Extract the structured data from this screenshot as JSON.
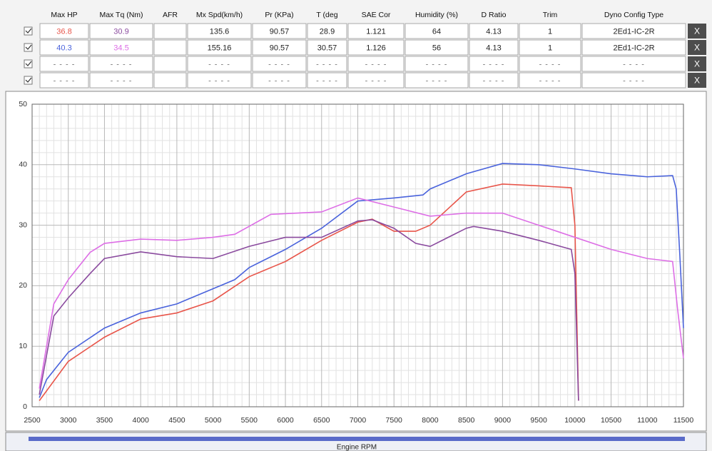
{
  "table": {
    "headers": [
      "Max HP",
      "Max Tq (Nm)",
      "AFR",
      "Mx Spd(km/h)",
      "Pr (KPa)",
      "T (deg",
      "SAE Cor",
      "Humidity (%)",
      "D Ratio",
      "Trim",
      "Dyno Config Type"
    ],
    "remove_button": "X",
    "rows": [
      [
        "36.8",
        "30.9",
        null,
        "135.6",
        "90.57",
        "28.9",
        "1.121",
        "64",
        "4.13",
        "1",
        "2Ed1-IC-2R"
      ],
      [
        "40.3",
        "34.5",
        null,
        "155.16",
        "90.57",
        "30.57",
        "1.126",
        "56",
        "4.13",
        "1",
        "2Ed1-IC-2R"
      ],
      [
        "- - - -",
        "- - - -",
        null,
        "- - - -",
        "- - - -",
        "- - - -",
        "- - - -",
        "- - - -",
        "- - - -",
        "- - - -",
        "- - - -"
      ],
      [
        "- - - -",
        "- - - -",
        null,
        "- - - -",
        "- - - -",
        "- - - -",
        "- - - -",
        "- - - -",
        "- - - -",
        "- - - -",
        "- - - -"
      ]
    ]
  },
  "chart_data": {
    "type": "line",
    "xlabel": "Engine RPM",
    "xlim": [
      2500,
      11500
    ],
    "xticks": [
      2500,
      3000,
      3500,
      4000,
      4500,
      5000,
      5500,
      6000,
      6500,
      7000,
      7500,
      8000,
      8500,
      9000,
      9500,
      10000,
      10500,
      11000,
      11500
    ],
    "ylim": [
      0,
      50
    ],
    "yticks": [
      0,
      10,
      20,
      30,
      40,
      50
    ],
    "grid": true,
    "series": [
      {
        "color": "#e8554a",
        "x": [
          2600,
          3000,
          3500,
          4000,
          4500,
          5000,
          5500,
          6000,
          6500,
          7000,
          7200,
          7500,
          7800,
          8000,
          8500,
          9000,
          9500,
          9950,
          10000,
          10050
        ],
        "values": [
          1,
          7.5,
          11.5,
          14.5,
          15.5,
          17.5,
          21.5,
          24,
          27.5,
          30.5,
          31,
          29,
          29,
          30,
          35.5,
          36.8,
          36.5,
          36.2,
          30,
          1
        ]
      },
      {
        "color": "#4a63dc",
        "x": [
          2600,
          2700,
          3000,
          3500,
          4000,
          4500,
          5000,
          5300,
          5500,
          6000,
          6500,
          7000,
          7500,
          7900,
          8000,
          8500,
          9000,
          9500,
          10000,
          10500,
          11000,
          11350,
          11400,
          11450,
          11500
        ],
        "values": [
          1.5,
          4.5,
          9,
          13,
          15.5,
          17,
          19.5,
          21,
          23,
          26,
          29.5,
          34,
          34.5,
          35,
          36,
          38.5,
          40.2,
          40,
          39.3,
          38.5,
          38,
          38.2,
          36,
          25,
          13
        ]
      },
      {
        "color": "#8a4a9e",
        "x": [
          2600,
          2800,
          3000,
          3300,
          3500,
          4000,
          4500,
          5000,
          5500,
          6000,
          6500,
          7000,
          7200,
          7500,
          7800,
          8000,
          8500,
          8600,
          9000,
          9500,
          9950,
          10000,
          10050
        ],
        "values": [
          2,
          15,
          18,
          22,
          24.5,
          25.6,
          24.8,
          24.5,
          26.5,
          28,
          28,
          30.7,
          30.9,
          29.5,
          27,
          26.5,
          29.5,
          29.8,
          29,
          27.5,
          26,
          22,
          1
        ]
      },
      {
        "color": "#dd6ee6",
        "x": [
          2600,
          2800,
          3000,
          3300,
          3500,
          4000,
          4500,
          5000,
          5300,
          5800,
          6500,
          7000,
          7500,
          8000,
          8500,
          9000,
          9500,
          10000,
          10500,
          11000,
          11350,
          11420,
          11500
        ],
        "values": [
          3,
          17,
          21,
          25.5,
          27,
          27.7,
          27.5,
          28,
          28.5,
          31.8,
          32.2,
          34.5,
          33,
          31.5,
          32,
          32,
          30,
          28,
          26,
          24.5,
          24,
          16,
          8
        ]
      }
    ]
  }
}
